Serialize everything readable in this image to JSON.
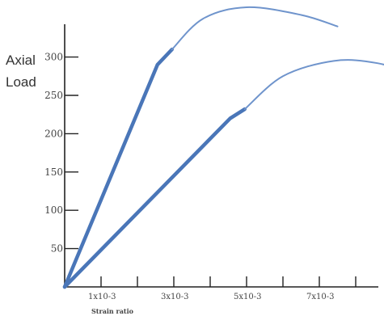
{
  "chart_data": {
    "type": "line",
    "title": "",
    "ylabel": [
      "Axial",
      "Load"
    ],
    "xlabel": "Strain ratio",
    "yticks": [
      "50",
      "100",
      "150",
      "200",
      "250",
      "300"
    ],
    "xticks": [
      "1x10-3",
      "3x10-3",
      "5x10-3",
      "7x10-3"
    ],
    "grid": false,
    "legend": "none",
    "colors": {
      "straight_segment": "#4a76b8",
      "curved_segment": "#6f94cc",
      "axis": "#222222"
    },
    "series": [
      {
        "straight": [
          [
            0,
            0
          ],
          [
            2.55,
            290
          ],
          [
            2.95,
            310
          ]
        ],
        "curve": [
          [
            2.95,
            310
          ],
          [
            3.8,
            350
          ],
          [
            5.0,
            365
          ],
          [
            6.5,
            355
          ],
          [
            7.5,
            340
          ]
        ]
      },
      {
        "straight": [
          [
            0,
            0
          ],
          [
            4.55,
            220
          ],
          [
            4.95,
            232
          ]
        ],
        "curve": [
          [
            4.95,
            232
          ],
          [
            6.0,
            275
          ],
          [
            7.4,
            295
          ],
          [
            8.6,
            292
          ],
          [
            9.8,
            275
          ]
        ]
      }
    ]
  }
}
